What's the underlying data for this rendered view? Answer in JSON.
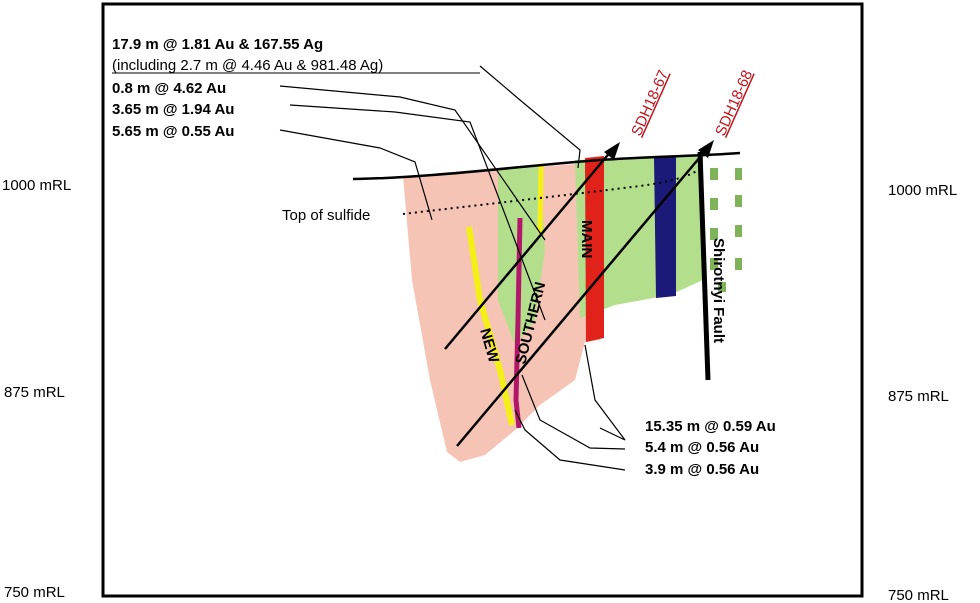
{
  "elevation_labels": {
    "left": [
      "1000 mRL",
      "875 mRL",
      "750 mRL"
    ],
    "right": [
      "1000 mRL",
      "875 mRL",
      "750 mRL"
    ]
  },
  "intercepts_top": [
    "17.9 m @ 1.81 Au & 167.55 Ag",
    "(including 2.7 m @ 4.46 Au & 981.48 Ag)",
    "0.8 m @ 4.62 Au",
    "3.65 m @ 1.94 Au",
    "5.65 m @ 0.55 Au"
  ],
  "intercepts_bottom": [
    "15.35 m @ 0.59 Au",
    "5.4 m @ 0.56 Au",
    "3.9 m @ 0.56 Au"
  ],
  "drillholes": [
    "SDH18-67",
    "SDH18-68"
  ],
  "feature_labels": {
    "top_of_sulfide": "Top of sulfide",
    "fault": "Shirotnyi Fault"
  },
  "vein_labels": {
    "new": "NEW",
    "southern": "SOUTHERN",
    "main": "MAIN"
  },
  "colors": {
    "frame": "#000000",
    "salmon_zone": "#f5c4b4",
    "green_zone": "#b3df8c",
    "green_dash": "#7fb35a",
    "main_vein": "#e0221b",
    "blue_vein": "#1b1a78",
    "new_vein": "#f5f014",
    "southern_vein": "#b2176a",
    "hole_label": "#c0151c"
  }
}
